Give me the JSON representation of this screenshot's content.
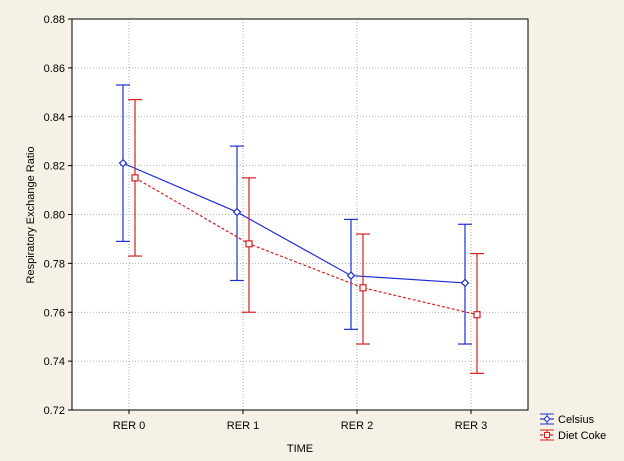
{
  "chart_data": {
    "type": "line",
    "title": "",
    "xlabel": "TIME",
    "ylabel": "Respiratory Exchange Ratio",
    "categories": [
      "RER 0",
      "RER 1",
      "RER 2",
      "RER 3"
    ],
    "ylim": [
      0.72,
      0.88
    ],
    "yticks": [
      "0.72",
      "0.74",
      "0.76",
      "0.78",
      "0.80",
      "0.82",
      "0.84",
      "0.86",
      "0.88"
    ],
    "grid": true,
    "legend_position": "bottom-right",
    "series": [
      {
        "name": "Celsius",
        "color": "#1f2fd6",
        "marker": "diamond",
        "line_style": "solid",
        "values": [
          0.821,
          0.801,
          0.775,
          0.772
        ],
        "error_low": [
          0.789,
          0.773,
          0.753,
          0.747
        ],
        "error_high": [
          0.853,
          0.828,
          0.798,
          0.796
        ]
      },
      {
        "name": "Diet Coke",
        "color": "#d62020",
        "marker": "square",
        "line_style": "dashed",
        "values": [
          0.815,
          0.788,
          0.77,
          0.759
        ],
        "error_low": [
          0.783,
          0.76,
          0.747,
          0.735
        ],
        "error_high": [
          0.847,
          0.815,
          0.792,
          0.784
        ]
      }
    ]
  }
}
